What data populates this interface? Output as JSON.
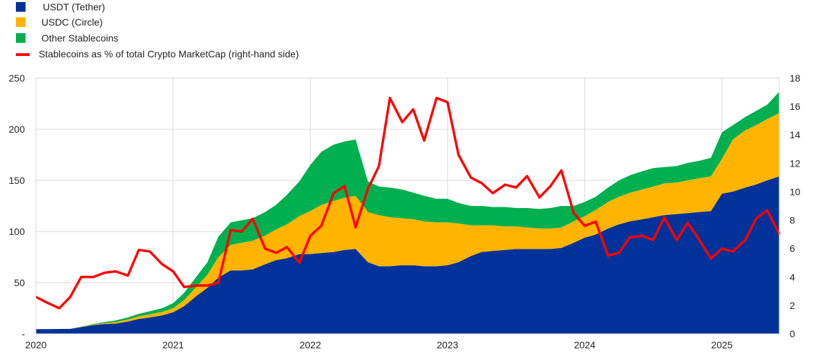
{
  "chart_data": {
    "type": "area",
    "title": "",
    "legend": [
      {
        "label": "USDT (Tether)",
        "color": "#003299",
        "kind": "area"
      },
      {
        "label": "USDC (Circle)",
        "color": "#FFB400",
        "kind": "area"
      },
      {
        "label": "Other Stablecoins",
        "color": "#00B050",
        "kind": "area"
      },
      {
        "label": "Stablecoins as % of total Crypto MarketCap (right-hand side)",
        "color": "#FF0000",
        "kind": "line"
      }
    ],
    "legend_position": "top-left",
    "x_tick_labels": [
      "2020",
      "2021",
      "2022",
      "2023",
      "2024",
      "2025"
    ],
    "x_range": [
      2020.0,
      2025.42
    ],
    "y_left": {
      "ticks": [
        "-",
        "50",
        "100",
        "150",
        "200",
        "250"
      ],
      "range": [
        0,
        250
      ]
    },
    "y_right": {
      "ticks": [
        "0",
        "2",
        "4",
        "6",
        "8",
        "10",
        "12",
        "14",
        "16",
        "18"
      ],
      "range": [
        0,
        18
      ]
    },
    "grid": true,
    "x": [
      2020.0,
      2020.08,
      2020.17,
      2020.25,
      2020.33,
      2020.42,
      2020.5,
      2020.58,
      2020.67,
      2020.75,
      2020.83,
      2020.92,
      2021.0,
      2021.08,
      2021.17,
      2021.25,
      2021.33,
      2021.42,
      2021.5,
      2021.58,
      2021.67,
      2021.75,
      2021.83,
      2021.92,
      2022.0,
      2022.08,
      2022.17,
      2022.25,
      2022.33,
      2022.42,
      2022.5,
      2022.58,
      2022.67,
      2022.75,
      2022.83,
      2022.92,
      2023.0,
      2023.08,
      2023.17,
      2023.25,
      2023.33,
      2023.42,
      2023.5,
      2023.58,
      2023.67,
      2023.75,
      2023.83,
      2023.92,
      2024.0,
      2024.08,
      2024.17,
      2024.25,
      2024.33,
      2024.42,
      2024.5,
      2024.58,
      2024.67,
      2024.75,
      2024.83,
      2024.92,
      2025.0,
      2025.08,
      2025.17,
      2025.25,
      2025.33,
      2025.42
    ],
    "series": [
      {
        "name": "USDT (Tether)",
        "axis": "left",
        "values": [
          4.5,
          4.6,
          4.7,
          4.8,
          6.5,
          8.5,
          9.5,
          10,
          12,
          14.5,
          16,
          18,
          21,
          27,
          37,
          45,
          55,
          62,
          62,
          63,
          68,
          72,
          74,
          78,
          78,
          79,
          80,
          82,
          83,
          70,
          66,
          66,
          67,
          67,
          66,
          66,
          67,
          70,
          76,
          80,
          81,
          82,
          83,
          83,
          83,
          83,
          84,
          89,
          94,
          97,
          103,
          107,
          110,
          112,
          114,
          116,
          117,
          118,
          119,
          120,
          137,
          139,
          143,
          146,
          150,
          154
        ]
      },
      {
        "name": "USDC (Circle)",
        "axis": "left",
        "values": [
          0,
          0,
          0,
          0,
          0.3,
          0.6,
          1,
          1.5,
          2,
          2.5,
          3,
          3.5,
          4,
          6,
          9,
          13,
          20,
          25,
          27,
          28,
          28,
          30,
          33,
          37,
          42,
          47,
          50,
          51,
          52,
          49,
          50,
          48,
          46,
          45,
          44,
          43,
          42,
          38,
          30,
          26,
          25,
          23,
          22,
          21,
          20,
          20,
          20,
          21,
          21,
          24,
          26,
          27,
          28,
          29,
          30,
          31,
          31,
          32,
          33,
          34,
          34,
          51,
          56,
          58,
          60,
          62
        ]
      },
      {
        "name": "Other Stablecoins",
        "axis": "left",
        "values": [
          0,
          0,
          0,
          0,
          0.3,
          0.5,
          1,
          1.5,
          2,
          2.5,
          3,
          3.5,
          5,
          7,
          10,
          12,
          20,
          22,
          22,
          22,
          23,
          24,
          29,
          34,
          45,
          52,
          55,
          55,
          55,
          30,
          28,
          29,
          28,
          26,
          25,
          23,
          23,
          20,
          19,
          19,
          18,
          19,
          18,
          19,
          19,
          20,
          21,
          15,
          14,
          13,
          14,
          16,
          17,
          18,
          18,
          16,
          16,
          17,
          17,
          18,
          26,
          14,
          13,
          14,
          14,
          21
        ]
      },
      {
        "name": "Stablecoins as % of total Crypto MarketCap (right-hand side)",
        "axis": "right",
        "values": [
          2.6,
          2.2,
          1.8,
          2.6,
          4.0,
          4.0,
          4.3,
          4.4,
          4.1,
          5.9,
          5.8,
          4.9,
          4.4,
          3.3,
          3.4,
          3.4,
          3.6,
          7.3,
          7.2,
          8.1,
          6.0,
          5.7,
          6.1,
          5.0,
          6.9,
          7.6,
          9.9,
          10.4,
          7.5,
          10.2,
          11.8,
          16.6,
          14.9,
          15.8,
          13.6,
          16.6,
          16.3,
          12.6,
          11.0,
          10.6,
          9.9,
          10.5,
          10.3,
          11.1,
          9.6,
          10.4,
          11.5,
          8.5,
          7.6,
          7.9,
          5.5,
          5.7,
          6.8,
          6.9,
          6.6,
          8.2,
          6.6,
          7.8,
          6.7,
          5.3,
          6.0,
          5.8,
          6.6,
          8.1,
          8.7,
          7.0
        ]
      }
    ]
  }
}
